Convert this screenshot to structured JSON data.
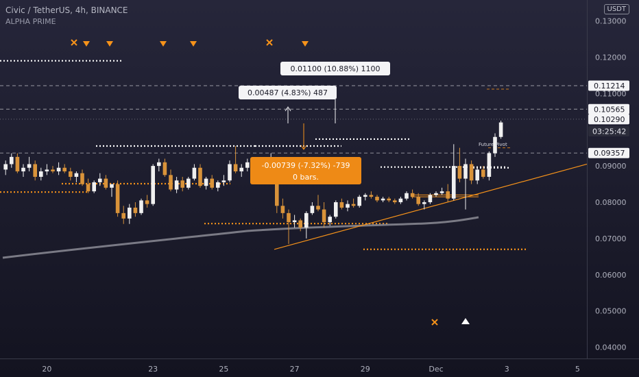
{
  "header": {
    "symbol_line": "Civic / TetherUS, 4h, BINANCE",
    "indicator": "ALPHA PRIME",
    "currency": "USDT"
  },
  "colors": {
    "background": "#151522",
    "up": "#f0f0f0",
    "down": "#d9933a",
    "accent": "#f7931a",
    "ma": "#8c8c95",
    "grid_text": "#b0b2be"
  },
  "chart_data": {
    "type": "candlestick",
    "title": "Civic / TetherUS, 4h, BINANCE",
    "ylim": [
      0.035,
      0.135
    ],
    "y_ticks": [
      "0.13000",
      "0.12000",
      "0.11000",
      "0.09000",
      "0.08000",
      "0.07000",
      "0.06000",
      "0.05000",
      "0.04000"
    ],
    "x_ticks": [
      {
        "label": "20",
        "i": 7
      },
      {
        "label": "23",
        "i": 25
      },
      {
        "label": "25",
        "i": 37
      },
      {
        "label": "27",
        "i": 49
      },
      {
        "label": "29",
        "i": 61
      },
      {
        "label": "Dec",
        "i": 73
      },
      {
        "label": "3",
        "i": 85
      },
      {
        "label": "5",
        "i": 97
      }
    ],
    "candles": [
      [
        0.089,
        0.0915,
        0.0875,
        0.0905
      ],
      [
        0.0905,
        0.0935,
        0.0895,
        0.0925
      ],
      [
        0.0925,
        0.0935,
        0.088,
        0.0885
      ],
      [
        0.0885,
        0.0905,
        0.087,
        0.0895
      ],
      [
        0.0895,
        0.0925,
        0.0885,
        0.0905
      ],
      [
        0.0905,
        0.0915,
        0.086,
        0.087
      ],
      [
        0.087,
        0.0895,
        0.086,
        0.0885
      ],
      [
        0.0885,
        0.0905,
        0.0875,
        0.089
      ],
      [
        0.089,
        0.09,
        0.088,
        0.0885
      ],
      [
        0.0885,
        0.091,
        0.0875,
        0.0895
      ],
      [
        0.0895,
        0.0905,
        0.088,
        0.0885
      ],
      [
        0.0885,
        0.0895,
        0.086,
        0.087
      ],
      [
        0.087,
        0.0885,
        0.0855,
        0.088
      ],
      [
        0.088,
        0.089,
        0.0845,
        0.085
      ],
      [
        0.085,
        0.0865,
        0.0825,
        0.083
      ],
      [
        0.083,
        0.086,
        0.0825,
        0.0855
      ],
      [
        0.0855,
        0.088,
        0.0845,
        0.0865
      ],
      [
        0.0865,
        0.0875,
        0.0835,
        0.084
      ],
      [
        0.084,
        0.0845,
        0.0815,
        0.085
      ],
      [
        0.085,
        0.086,
        0.076,
        0.077
      ],
      [
        0.077,
        0.079,
        0.074,
        0.0755
      ],
      [
        0.0755,
        0.0795,
        0.074,
        0.0785
      ],
      [
        0.0785,
        0.08,
        0.076,
        0.077
      ],
      [
        0.077,
        0.081,
        0.0765,
        0.0805
      ],
      [
        0.0805,
        0.082,
        0.0785,
        0.0795
      ],
      [
        0.0795,
        0.0905,
        0.079,
        0.09
      ],
      [
        0.09,
        0.092,
        0.0885,
        0.091
      ],
      [
        0.091,
        0.092,
        0.087,
        0.0875
      ],
      [
        0.0875,
        0.089,
        0.083,
        0.0835
      ],
      [
        0.0835,
        0.087,
        0.0825,
        0.086
      ],
      [
        0.086,
        0.087,
        0.083,
        0.084
      ],
      [
        0.084,
        0.087,
        0.0835,
        0.0865
      ],
      [
        0.0865,
        0.0905,
        0.086,
        0.0895
      ],
      [
        0.0895,
        0.0905,
        0.084,
        0.0845
      ],
      [
        0.0845,
        0.087,
        0.0835,
        0.0865
      ],
      [
        0.0865,
        0.0875,
        0.0835,
        0.084
      ],
      [
        0.084,
        0.086,
        0.083,
        0.0855
      ],
      [
        0.0855,
        0.0875,
        0.0845,
        0.086
      ],
      [
        0.086,
        0.0915,
        0.0855,
        0.0905
      ],
      [
        0.0905,
        0.0955,
        0.088,
        0.0885
      ],
      [
        0.0885,
        0.0905,
        0.087,
        0.0895
      ],
      [
        0.0895,
        0.092,
        0.0885,
        0.091
      ],
      [
        0.091,
        0.092,
        0.089,
        0.0895
      ],
      [
        0.0895,
        0.0915,
        0.087,
        0.088
      ],
      [
        0.088,
        0.0905,
        0.087,
        0.0895
      ],
      [
        0.0895,
        0.0935,
        0.0885,
        0.0905
      ],
      [
        0.0905,
        0.091,
        0.077,
        0.079
      ],
      [
        0.079,
        0.081,
        0.0755,
        0.077
      ],
      [
        0.077,
        0.078,
        0.0685,
        0.0745
      ],
      [
        0.0745,
        0.0765,
        0.073,
        0.075
      ],
      [
        0.075,
        0.0755,
        0.072,
        0.073
      ],
      [
        0.073,
        0.0775,
        0.07,
        0.077
      ],
      [
        0.077,
        0.08,
        0.0765,
        0.079
      ],
      [
        0.079,
        0.082,
        0.0775,
        0.078
      ],
      [
        0.078,
        0.08,
        0.073,
        0.0745
      ],
      [
        0.0745,
        0.0765,
        0.0735,
        0.076
      ],
      [
        0.076,
        0.0805,
        0.0755,
        0.08
      ],
      [
        0.08,
        0.081,
        0.078,
        0.0785
      ],
      [
        0.0785,
        0.0805,
        0.0775,
        0.0795
      ],
      [
        0.0795,
        0.081,
        0.0785,
        0.079
      ],
      [
        0.079,
        0.082,
        0.0785,
        0.0815
      ],
      [
        0.0815,
        0.0825,
        0.0805,
        0.082
      ],
      [
        0.082,
        0.083,
        0.081,
        0.0815
      ],
      [
        0.0815,
        0.082,
        0.08,
        0.0805
      ],
      [
        0.0805,
        0.0815,
        0.08,
        0.081
      ],
      [
        0.081,
        0.0815,
        0.08,
        0.0805
      ],
      [
        0.0805,
        0.081,
        0.0795,
        0.08
      ],
      [
        0.08,
        0.0815,
        0.0795,
        0.081
      ],
      [
        0.081,
        0.083,
        0.0805,
        0.0825
      ],
      [
        0.0825,
        0.0835,
        0.081,
        0.0815
      ],
      [
        0.0815,
        0.0825,
        0.079,
        0.0795
      ],
      [
        0.0795,
        0.0805,
        0.078,
        0.08
      ],
      [
        0.08,
        0.0825,
        0.0795,
        0.082
      ],
      [
        0.082,
        0.083,
        0.0815,
        0.0825
      ],
      [
        0.0825,
        0.084,
        0.082,
        0.083
      ],
      [
        0.083,
        0.085,
        0.08,
        0.081
      ],
      [
        0.081,
        0.096,
        0.0805,
        0.09
      ],
      [
        0.09,
        0.095,
        0.0855,
        0.0865
      ],
      [
        0.0865,
        0.092,
        0.078,
        0.0905
      ],
      [
        0.0905,
        0.0915,
        0.085,
        0.086
      ],
      [
        0.086,
        0.0895,
        0.085,
        0.089
      ],
      [
        0.089,
        0.09,
        0.0865,
        0.087
      ],
      [
        0.087,
        0.094,
        0.086,
        0.0935
      ],
      [
        0.0935,
        0.099,
        0.0925,
        0.098
      ],
      [
        0.098,
        0.1025,
        0.0975,
        0.102
      ]
    ],
    "price_tags": [
      {
        "value": 0.11214,
        "label": "0.11214"
      },
      {
        "value": 0.10565,
        "label": "0.10565"
      },
      {
        "value": 0.1029,
        "label": "0.10290"
      },
      {
        "value": 0.09357,
        "label": "0.09357"
      }
    ],
    "countdown": "03:25:42",
    "measures": [
      {
        "text": "0.01100 (10.88%) 1100"
      },
      {
        "text": "0.00487 (4.83%) 487"
      },
      {
        "text": "-0.00739 (-7.32%) -739",
        "text2": "0 bars."
      }
    ],
    "annotation": "Future Pivot"
  }
}
